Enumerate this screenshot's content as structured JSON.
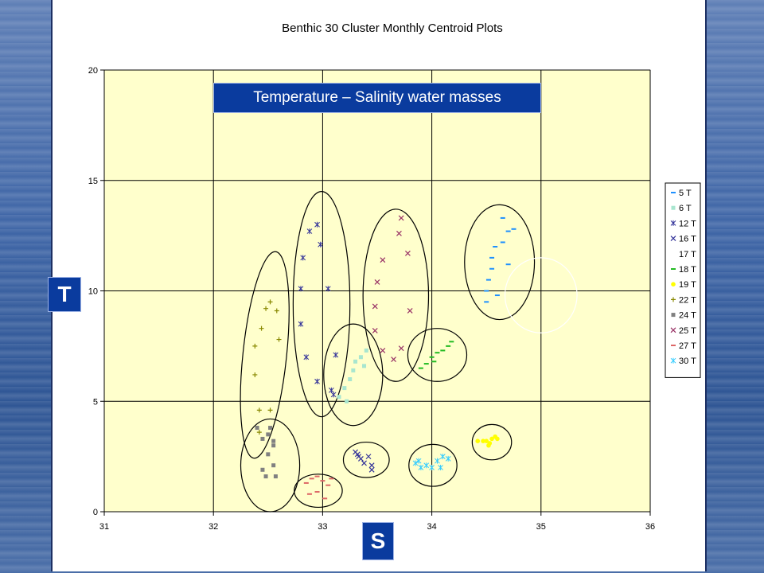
{
  "overlay": {
    "banner_text": "Temperature – Salinity water masses",
    "t_label": "T",
    "s_label": "S"
  },
  "chart_data": {
    "type": "scatter",
    "title": "Benthic 30 Cluster Monthly Centroid Plots",
    "xlabel": "",
    "ylabel": "",
    "xlim": [
      31,
      36
    ],
    "ylim": [
      0,
      20
    ],
    "xticks": [
      31,
      32,
      33,
      34,
      35,
      36
    ],
    "yticks": [
      0,
      5,
      10,
      15,
      20
    ],
    "grid": true,
    "plot_background": "#ffffcc",
    "legend_position": "right",
    "series": [
      {
        "name": "5 T",
        "marker": "dash",
        "color": "#1e90ff",
        "points": [
          [
            34.5,
            9.5
          ],
          [
            34.5,
            10.0
          ],
          [
            34.52,
            10.5
          ],
          [
            34.55,
            11.0
          ],
          [
            34.55,
            11.5
          ],
          [
            34.58,
            12.0
          ],
          [
            34.65,
            12.2
          ],
          [
            34.7,
            12.7
          ],
          [
            34.65,
            13.3
          ],
          [
            34.75,
            12.8
          ],
          [
            34.7,
            11.2
          ],
          [
            34.6,
            9.8
          ]
        ]
      },
      {
        "name": "6 T",
        "marker": "square",
        "color": "#a8e6cf",
        "points": [
          [
            33.15,
            5.2
          ],
          [
            33.2,
            5.6
          ],
          [
            33.25,
            6.0
          ],
          [
            33.28,
            6.4
          ],
          [
            33.3,
            6.8
          ],
          [
            33.35,
            7.0
          ],
          [
            33.4,
            7.3
          ],
          [
            33.38,
            6.6
          ],
          [
            33.22,
            5.0
          ]
        ]
      },
      {
        "name": "12 T",
        "marker": "asterisk",
        "color": "#333399",
        "points": [
          [
            32.82,
            11.5
          ],
          [
            32.88,
            12.7
          ],
          [
            32.95,
            13.0
          ],
          [
            32.98,
            12.1
          ],
          [
            32.8,
            10.1
          ],
          [
            33.05,
            10.1
          ],
          [
            32.8,
            8.5
          ],
          [
            32.85,
            7.0
          ],
          [
            32.95,
            5.9
          ],
          [
            33.1,
            5.3
          ],
          [
            33.12,
            7.1
          ],
          [
            33.08,
            5.5
          ]
        ]
      },
      {
        "name": "16 T",
        "marker": "x",
        "color": "#333399",
        "points": [
          [
            33.3,
            2.7
          ],
          [
            33.33,
            2.5
          ],
          [
            33.35,
            2.4
          ],
          [
            33.38,
            2.2
          ],
          [
            33.42,
            2.5
          ],
          [
            33.45,
            2.1
          ],
          [
            33.45,
            1.9
          ],
          [
            33.32,
            2.6
          ]
        ]
      },
      {
        "name": "17 T",
        "marker": "none",
        "color": "#ffffff",
        "points": []
      },
      {
        "name": "18 T",
        "marker": "dash",
        "color": "#22bb22",
        "points": [
          [
            33.9,
            6.5
          ],
          [
            33.95,
            6.7
          ],
          [
            34.0,
            7.0
          ],
          [
            34.05,
            7.2
          ],
          [
            34.1,
            7.3
          ],
          [
            34.15,
            7.5
          ],
          [
            34.18,
            7.7
          ],
          [
            34.02,
            6.8
          ]
        ]
      },
      {
        "name": "19 T",
        "marker": "circle",
        "color": "#ffff00",
        "points": [
          [
            34.42,
            3.2
          ],
          [
            34.47,
            3.2
          ],
          [
            34.5,
            3.2
          ],
          [
            34.53,
            3.1
          ],
          [
            34.55,
            3.3
          ],
          [
            34.58,
            3.4
          ],
          [
            34.6,
            3.3
          ],
          [
            34.52,
            3.0
          ]
        ]
      },
      {
        "name": "22 T",
        "marker": "plus",
        "color": "#888800",
        "points": [
          [
            32.38,
            6.2
          ],
          [
            32.38,
            7.5
          ],
          [
            32.44,
            8.3
          ],
          [
            32.48,
            9.2
          ],
          [
            32.52,
            9.5
          ],
          [
            32.58,
            9.1
          ],
          [
            32.6,
            7.8
          ],
          [
            32.42,
            4.6
          ],
          [
            32.52,
            4.6
          ],
          [
            32.42,
            3.6
          ]
        ]
      },
      {
        "name": "24 T",
        "marker": "square",
        "color": "#808080",
        "points": [
          [
            32.4,
            3.8
          ],
          [
            32.45,
            3.3
          ],
          [
            32.5,
            3.5
          ],
          [
            32.55,
            3.2
          ],
          [
            32.55,
            3.0
          ],
          [
            32.5,
            2.6
          ],
          [
            32.55,
            2.1
          ],
          [
            32.45,
            1.9
          ],
          [
            32.48,
            1.6
          ],
          [
            32.57,
            1.6
          ],
          [
            32.52,
            3.8
          ]
        ]
      },
      {
        "name": "25 T",
        "marker": "x",
        "color": "#993366",
        "points": [
          [
            33.72,
            13.3
          ],
          [
            33.7,
            12.6
          ],
          [
            33.78,
            11.7
          ],
          [
            33.55,
            11.4
          ],
          [
            33.5,
            10.4
          ],
          [
            33.48,
            9.3
          ],
          [
            33.8,
            9.1
          ],
          [
            33.48,
            8.2
          ],
          [
            33.55,
            7.3
          ],
          [
            33.65,
            6.9
          ],
          [
            33.72,
            7.4
          ]
        ]
      },
      {
        "name": "27 T",
        "marker": "dash",
        "color": "#dd6666",
        "points": [
          [
            32.85,
            1.3
          ],
          [
            32.9,
            1.5
          ],
          [
            32.95,
            1.6
          ],
          [
            33.0,
            1.4
          ],
          [
            33.05,
            1.2
          ],
          [
            32.95,
            0.9
          ],
          [
            33.02,
            0.6
          ],
          [
            32.88,
            0.8
          ],
          [
            33.08,
            1.5
          ]
        ]
      },
      {
        "name": "30 T",
        "marker": "asterisk",
        "color": "#33ccff",
        "points": [
          [
            33.85,
            2.2
          ],
          [
            33.9,
            2.0
          ],
          [
            33.95,
            2.1
          ],
          [
            34.0,
            2.0
          ],
          [
            34.05,
            2.3
          ],
          [
            34.1,
            2.5
          ],
          [
            34.15,
            2.4
          ],
          [
            34.08,
            2.0
          ],
          [
            33.88,
            2.3
          ]
        ]
      }
    ],
    "ellipses": [
      {
        "cx": 32.47,
        "cy": 7.1,
        "rx": 0.2,
        "ry": 4.7,
        "angle": 6
      },
      {
        "cx": 32.52,
        "cy": 2.1,
        "rx": 0.27,
        "ry": 2.1,
        "angle": 0
      },
      {
        "cx": 32.99,
        "cy": 9.4,
        "rx": 0.26,
        "ry": 5.1,
        "angle": 0
      },
      {
        "cx": 33.28,
        "cy": 6.2,
        "rx": 0.27,
        "ry": 2.3,
        "angle": 0
      },
      {
        "cx": 32.96,
        "cy": 0.95,
        "rx": 0.22,
        "ry": 0.75,
        "angle": 0
      },
      {
        "cx": 33.4,
        "cy": 2.35,
        "rx": 0.21,
        "ry": 0.8,
        "angle": 0
      },
      {
        "cx": 33.67,
        "cy": 9.8,
        "rx": 0.3,
        "ry": 3.9,
        "angle": 0
      },
      {
        "cx": 34.05,
        "cy": 7.1,
        "rx": 0.27,
        "ry": 1.2,
        "angle": 0
      },
      {
        "cx": 34.01,
        "cy": 2.1,
        "rx": 0.22,
        "ry": 0.95,
        "angle": 0
      },
      {
        "cx": 34.55,
        "cy": 3.15,
        "rx": 0.18,
        "ry": 0.8,
        "angle": 0
      },
      {
        "cx": 34.62,
        "cy": 11.3,
        "rx": 0.32,
        "ry": 2.6,
        "angle": 0
      },
      {
        "cx": 35.0,
        "cy": 9.8,
        "rx": 0.33,
        "ry": 1.7,
        "angle": 0,
        "color": "#ffffff"
      }
    ]
  }
}
